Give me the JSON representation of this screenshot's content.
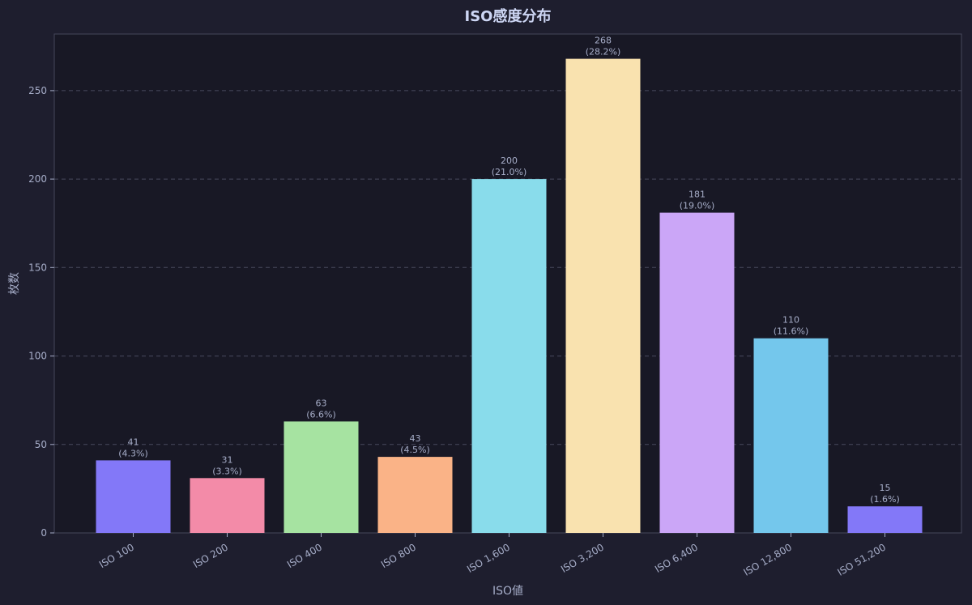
{
  "chart_data": {
    "type": "bar",
    "title": "ISO感度分布",
    "xlabel": "ISO値",
    "ylabel": "枚数",
    "categories": [
      "ISO 100",
      "ISO 200",
      "ISO 400",
      "ISO 800",
      "ISO 1,600",
      "ISO 3,200",
      "ISO 6,400",
      "ISO 12,800",
      "ISO 51,200"
    ],
    "values": [
      41,
      31,
      63,
      43,
      200,
      268,
      181,
      110,
      15
    ],
    "percent_labels": [
      "(4.3%)",
      "(3.3%)",
      "(6.6%)",
      "(4.5%)",
      "(21.0%)",
      "(28.2%)",
      "(19.0%)",
      "(11.6%)",
      "(1.6%)"
    ],
    "colors": [
      "#8378f8",
      "#f38ba8",
      "#a6e3a1",
      "#fab387",
      "#89dceb",
      "#f9e2af",
      "#cba6f7",
      "#74c7ec",
      "#8378f8"
    ],
    "ylim": [
      0,
      282
    ],
    "yticks": [
      0,
      50,
      100,
      150,
      200,
      250
    ],
    "grid": true,
    "background": "#1e1e2e",
    "plot_background": "#181825"
  }
}
